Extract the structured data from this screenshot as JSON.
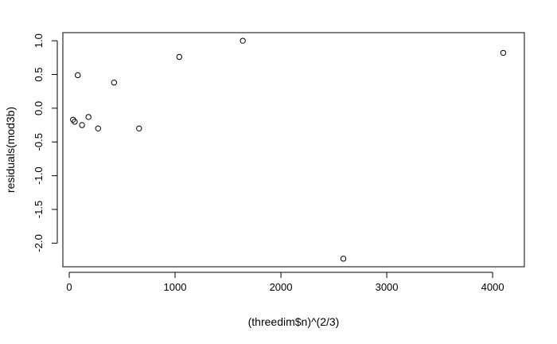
{
  "chart_data": {
    "type": "scatter",
    "xlabel": "(threedim$n)^(2/3)",
    "ylabel": "residuals(mod3b)",
    "xlim": [
      -60,
      4300
    ],
    "ylim": [
      -2.35,
      1.12
    ],
    "x_ticks": [
      0,
      1000,
      2000,
      3000,
      4000
    ],
    "x_tick_labels": [
      "0",
      "1000",
      "2000",
      "3000",
      "4000"
    ],
    "y_ticks": [
      1.0,
      0.5,
      0.0,
      -0.5,
      -1.0,
      -1.5,
      -2.0
    ],
    "y_tick_labels": [
      "1.0",
      "0.5",
      "0.0",
      "-0.5",
      "-1.0",
      "-1.5",
      "-2.0"
    ],
    "grid": false,
    "marker": "open-circle",
    "points": [
      {
        "x": 36,
        "y": -0.17
      },
      {
        "x": 52,
        "y": -0.2
      },
      {
        "x": 81,
        "y": 0.49
      },
      {
        "x": 121,
        "y": -0.25
      },
      {
        "x": 182,
        "y": -0.13
      },
      {
        "x": 273,
        "y": -0.3
      },
      {
        "x": 424,
        "y": 0.38
      },
      {
        "x": 660,
        "y": -0.3
      },
      {
        "x": 1040,
        "y": 0.76
      },
      {
        "x": 1640,
        "y": 1.0
      },
      {
        "x": 2590,
        "y": -2.23
      },
      {
        "x": 4100,
        "y": 0.82
      }
    ]
  }
}
